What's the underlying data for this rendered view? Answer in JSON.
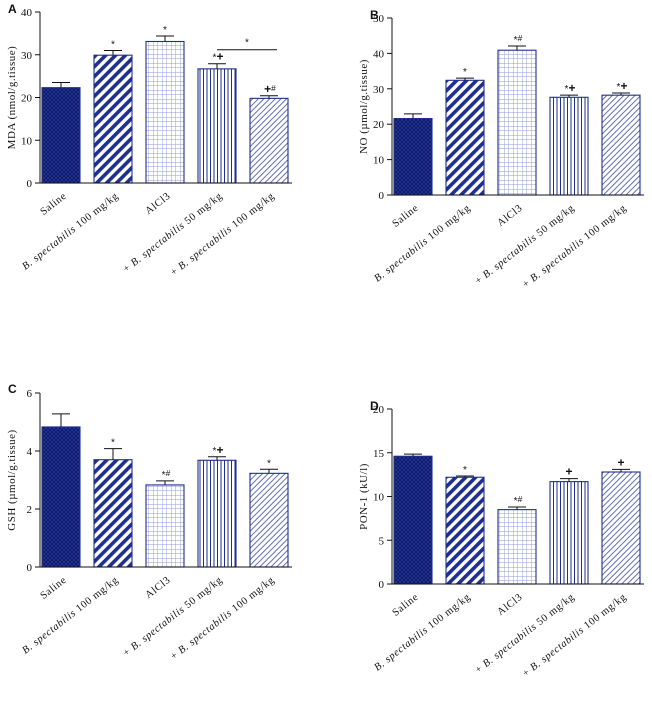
{
  "chart_data": [
    {
      "panel": "A",
      "type": "bar",
      "ylabel": "MDA (nmol/g.tissue)",
      "ylim": [
        0,
        40
      ],
      "yticks": [
        0,
        10,
        20,
        30,
        40
      ],
      "categories": [
        "Saline",
        "B. spectabilis 100 mg/kg",
        "AlCl3",
        "+ B. spectabilis 50 mg/kg",
        "+ B. spectabilis 100 mg/kg"
      ],
      "values": [
        22.3,
        29.9,
        33.1,
        26.7,
        19.8
      ],
      "errors": [
        1.2,
        1.1,
        1.3,
        1.2,
        0.6
      ],
      "annotations": [
        "",
        "*",
        "*",
        "*+",
        "+#"
      ],
      "bracket": {
        "from": 3,
        "to": 4,
        "label": "*"
      }
    },
    {
      "panel": "B",
      "type": "bar",
      "ylabel": "NO (µmol/g.tissue)",
      "ylim": [
        0,
        50
      ],
      "yticks": [
        0,
        10,
        20,
        30,
        40,
        50
      ],
      "categories": [
        "Saline",
        "B. spectabilis 100 mg/kg",
        "AlCl3",
        "+ B. spectabilis 50 mg/kg",
        "+ B. spectabilis 100 mg/kg"
      ],
      "values": [
        21.6,
        32.4,
        40.9,
        27.6,
        28.2
      ],
      "errors": [
        1.3,
        0.6,
        1.2,
        0.6,
        0.6
      ],
      "annotations": [
        "",
        "*",
        "*#",
        "*+",
        "*+"
      ]
    },
    {
      "panel": "C",
      "type": "bar",
      "ylabel": "GSH (µmol/g.tissue)",
      "ylim": [
        0,
        6
      ],
      "yticks": [
        0,
        2,
        4,
        6
      ],
      "categories": [
        "Saline",
        "B. spectabilis 100 mg/kg",
        "AlCl3",
        "+ B. spectabilis 50 mg/kg",
        "+ B. spectabilis 100 mg/kg"
      ],
      "values": [
        4.83,
        3.7,
        2.83,
        3.68,
        3.23
      ],
      "errors": [
        0.45,
        0.38,
        0.14,
        0.12,
        0.14
      ],
      "annotations": [
        "",
        "*",
        "*#",
        "*+",
        "*"
      ]
    },
    {
      "panel": "D",
      "type": "bar",
      "ylabel": "PON-1 (kU/l)",
      "ylim": [
        0,
        20
      ],
      "yticks": [
        0,
        5,
        10,
        15,
        20
      ],
      "categories": [
        "Saline",
        "B. spectabilis 100 mg/kg",
        "AlCl3",
        "+ B. spectabilis 50 mg/kg",
        "+ B. spectabilis 100 mg/kg"
      ],
      "values": [
        14.6,
        12.2,
        8.5,
        11.7,
        12.8
      ],
      "errors": [
        0.25,
        0.15,
        0.3,
        0.35,
        0.3
      ],
      "annotations": [
        "",
        "*",
        "*#",
        "+",
        "+"
      ]
    }
  ],
  "colors": {
    "bar": "#1f2f8f",
    "axis": "#111111"
  }
}
